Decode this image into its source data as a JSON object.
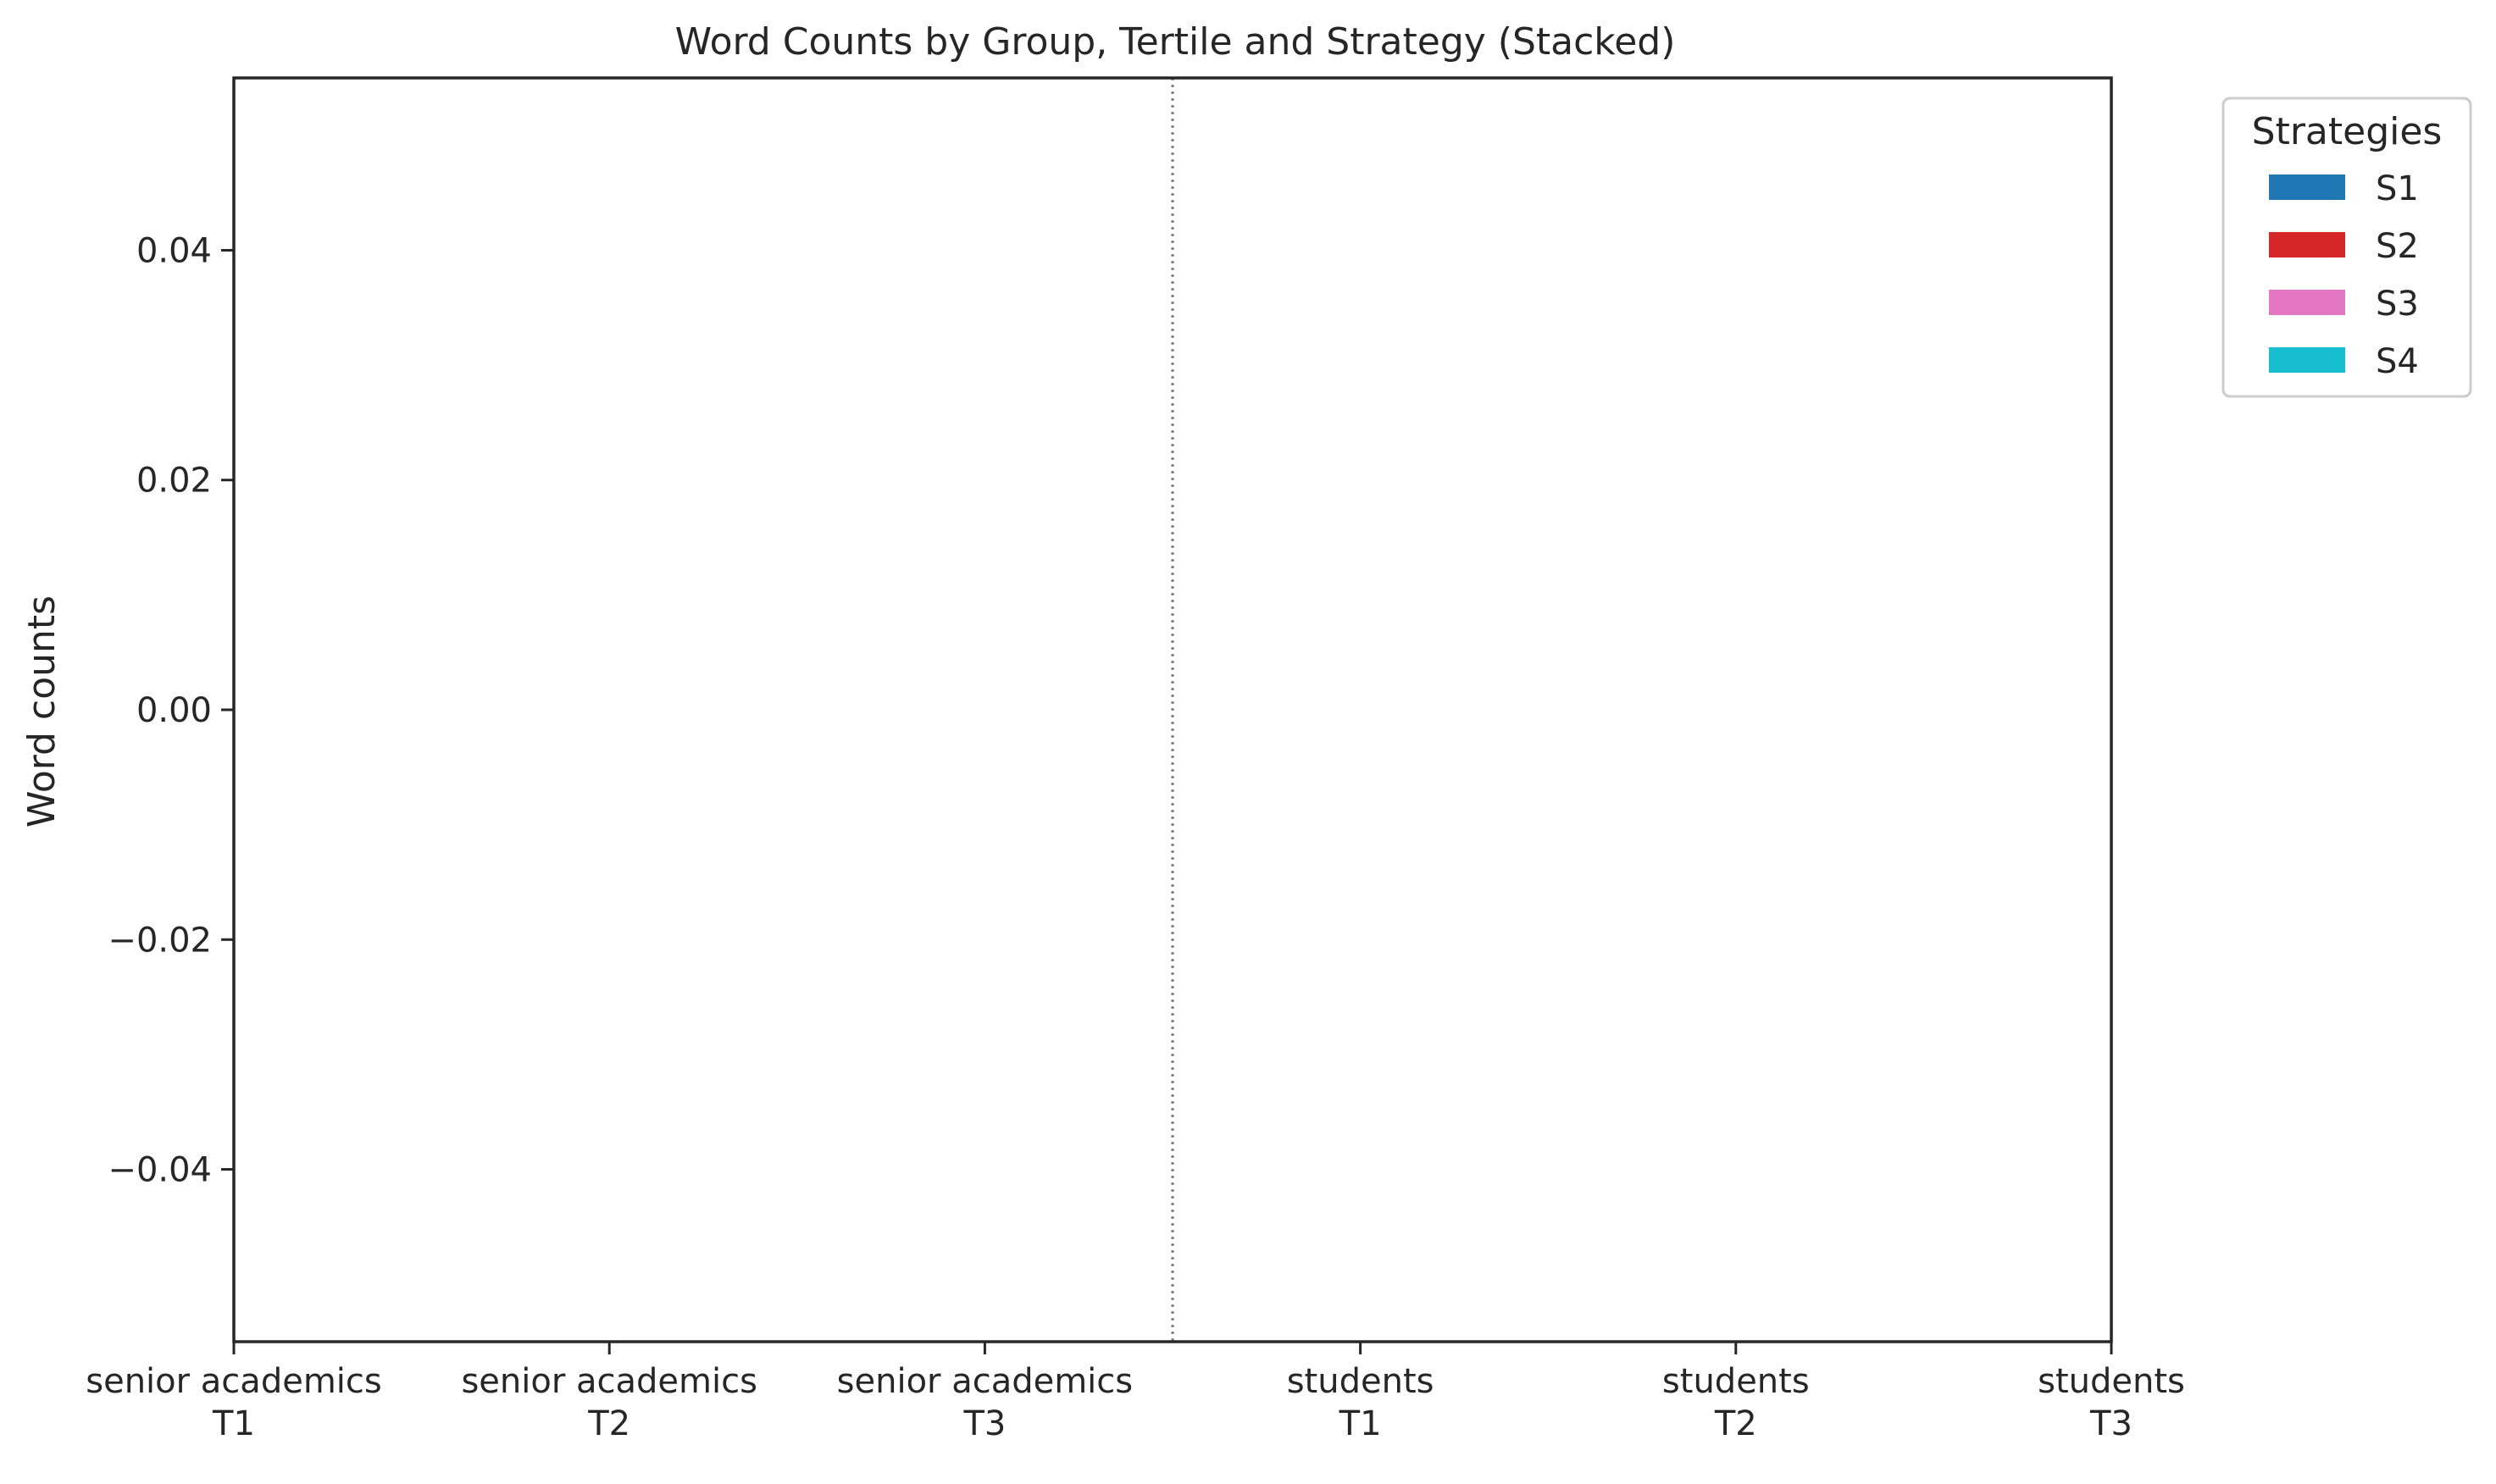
{
  "chart_data": {
    "type": "bar",
    "stacked": true,
    "title": "Word Counts by Group, Tertile and Strategy (Stacked)",
    "xlabel": "",
    "ylabel": "Word counts",
    "categories": [
      [
        "senior academics",
        "T1"
      ],
      [
        "senior academics",
        "T2"
      ],
      [
        "senior academics",
        "T3"
      ],
      [
        "students",
        "T1"
      ],
      [
        "students",
        "T2"
      ],
      [
        "students",
        "T3"
      ]
    ],
    "ylim": [
      -0.055,
      0.055
    ],
    "yticks": [
      -0.04,
      -0.02,
      0.0,
      0.02,
      0.04
    ],
    "ytick_labels": [
      "−0.04",
      "−0.02",
      "0.00",
      "0.02",
      "0.04"
    ],
    "xlim": [
      0,
      5
    ],
    "group_separator_at": 2.5,
    "grid": false,
    "legend": {
      "title": "Strategies",
      "placement": "outside-top-right"
    },
    "series": [
      {
        "name": "S1",
        "color": "#1f77b4",
        "values": [
          0,
          0,
          0,
          0,
          0,
          0
        ]
      },
      {
        "name": "S2",
        "color": "#d62728",
        "values": [
          0,
          0,
          0,
          0,
          0,
          0
        ]
      },
      {
        "name": "S3",
        "color": "#e377c2",
        "values": [
          0,
          0,
          0,
          0,
          0,
          0
        ]
      },
      {
        "name": "S4",
        "color": "#17becf",
        "values": [
          0,
          0,
          0,
          0,
          0,
          0
        ]
      }
    ]
  }
}
